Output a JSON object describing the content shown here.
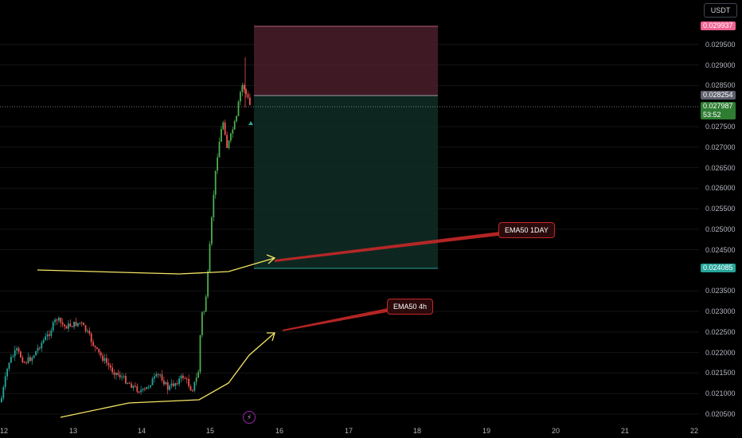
{
  "chart": {
    "currency": "USDT",
    "price_ticks": [
      "0.029500",
      "0.029000",
      "0.028500",
      "0.027500",
      "0.027000",
      "0.026500",
      "0.026000",
      "0.025500",
      "0.025000",
      "0.024500",
      "0.023500",
      "0.023000",
      "0.022500",
      "0.022000",
      "0.021500",
      "0.021000",
      "0.020500"
    ],
    "time_ticks": [
      "12",
      "13",
      "14",
      "15",
      "16",
      "17",
      "18",
      "19",
      "20",
      "21",
      "22"
    ],
    "stop_price_tag": "0.029937",
    "entry_price_tag": "0.028254",
    "current_price_tag": "0.027987",
    "countdown": "53:52",
    "target_price_tag": "0.024085",
    "annotations": {
      "ema_daily": "EMA50 1DAY",
      "ema_4h": "EMA50 4h"
    },
    "colors": {
      "up": "#26a69a",
      "down": "#ef5350",
      "up_bright": "#4caf50",
      "stop_zone": "#4a1f2a",
      "target_zone": "#0f2e26",
      "ema_line": "#f5e663",
      "arrow": "#c62828"
    },
    "icons": {
      "lightning": "lightning-icon"
    }
  }
}
